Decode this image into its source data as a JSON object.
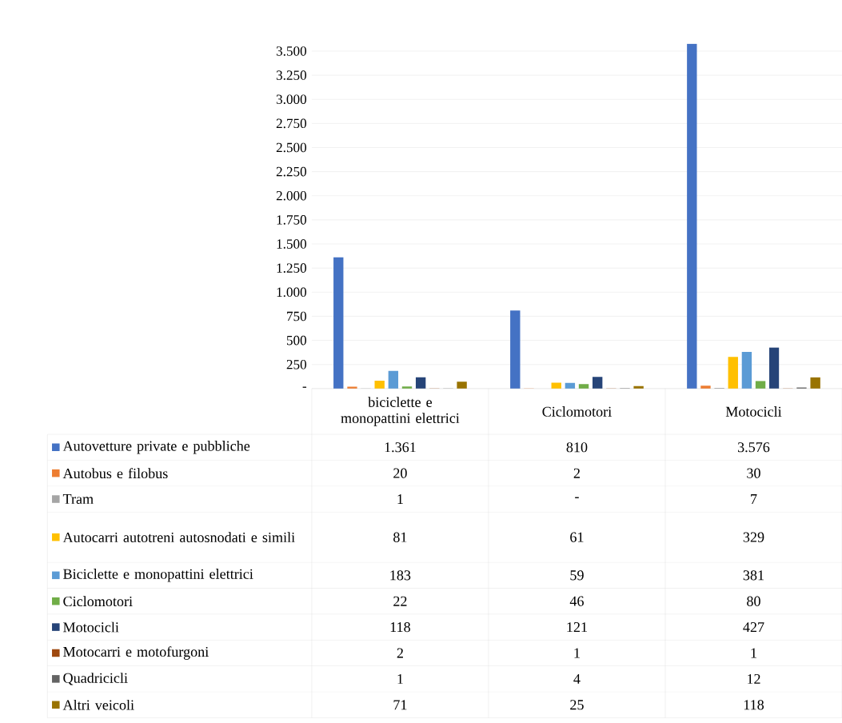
{
  "chart_data": {
    "type": "bar",
    "categories": [
      "biciclette e monopattini elettrici",
      "Ciclomotori",
      "Motocicli"
    ],
    "ylim": [
      0,
      3580
    ],
    "yticks": [
      {
        "value": 0,
        "label": "-"
      },
      {
        "value": 250,
        "label": "250"
      },
      {
        "value": 500,
        "label": "500"
      },
      {
        "value": 750,
        "label": "750"
      },
      {
        "value": 1000,
        "label": "1.000"
      },
      {
        "value": 1250,
        "label": "1.250"
      },
      {
        "value": 1500,
        "label": "1.500"
      },
      {
        "value": 1750,
        "label": "1.750"
      },
      {
        "value": 2000,
        "label": "2.000"
      },
      {
        "value": 2250,
        "label": "2.250"
      },
      {
        "value": 2500,
        "label": "2.500"
      },
      {
        "value": 2750,
        "label": "2.750"
      },
      {
        "value": 3000,
        "label": "3.000"
      },
      {
        "value": 3250,
        "label": "3.250"
      },
      {
        "value": 3500,
        "label": "3.500"
      }
    ],
    "grid": "y",
    "legend": "bottom",
    "series": [
      {
        "name": "Autovetture private e pubbliche",
        "color": "#4472c4",
        "values": [
          1361,
          810,
          3576
        ],
        "value_labels": [
          "1.361",
          "810",
          "3.576"
        ]
      },
      {
        "name": "Autobus e filobus",
        "color": "#ed7d31",
        "values": [
          20,
          2,
          30
        ],
        "value_labels": [
          "20",
          "2",
          "30"
        ]
      },
      {
        "name": "Tram",
        "color": "#a5a5a5",
        "values": [
          1,
          0,
          7
        ],
        "value_labels": [
          "1",
          "-",
          "7"
        ]
      },
      {
        "name": "Autocarri autotreni autosnodati e simili",
        "color": "#ffc000",
        "values": [
          81,
          61,
          329
        ],
        "value_labels": [
          "81",
          "61",
          "329"
        ]
      },
      {
        "name": "Biciclette e monopattini elettrici",
        "color": "#5b9bd5",
        "values": [
          183,
          59,
          381
        ],
        "value_labels": [
          "183",
          "59",
          "381"
        ]
      },
      {
        "name": "Ciclomotori",
        "color": "#70ad47",
        "values": [
          22,
          46,
          80
        ],
        "value_labels": [
          "22",
          "46",
          "80"
        ]
      },
      {
        "name": "Motocicli",
        "color": "#264478",
        "values": [
          118,
          121,
          427
        ],
        "value_labels": [
          "118",
          "121",
          "427"
        ]
      },
      {
        "name": "Motocarri e motofurgoni",
        "color": "#9e480e",
        "values": [
          2,
          1,
          1
        ],
        "value_labels": [
          "2",
          "1",
          "1"
        ]
      },
      {
        "name": "Quadricicli",
        "color": "#636363",
        "values": [
          1,
          4,
          12
        ],
        "value_labels": [
          "1",
          "4",
          "12"
        ]
      },
      {
        "name": "Altri veicoli",
        "color": "#997300",
        "values": [
          71,
          25,
          118
        ],
        "value_labels": [
          "71",
          "25",
          "118"
        ]
      }
    ]
  }
}
